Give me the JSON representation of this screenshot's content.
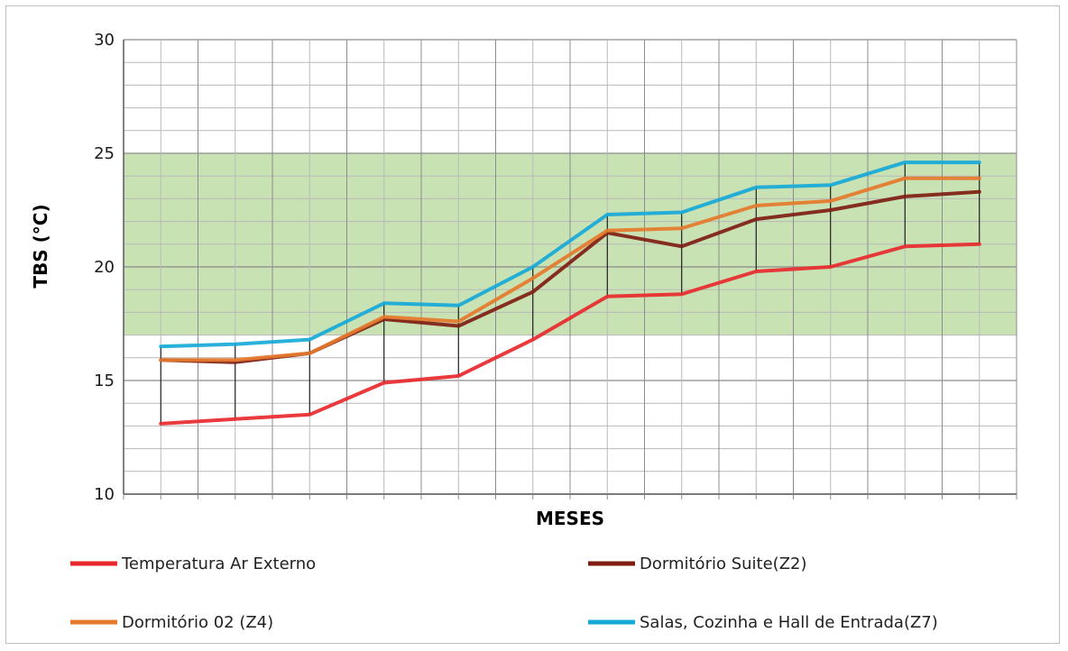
{
  "chart_data": {
    "type": "line",
    "title": "",
    "xlabel": "MESES",
    "ylabel": "TBS (°C)",
    "ylim": [
      10,
      30
    ],
    "yticks": [
      10,
      15,
      20,
      25,
      30
    ],
    "x": [
      1,
      2,
      3,
      4,
      5,
      6,
      7,
      8,
      9,
      10,
      11,
      12
    ],
    "grid": true,
    "comfort_band": {
      "from": 17,
      "to": 25,
      "color": "#c9e2b4"
    },
    "series": [
      {
        "name": "Temperatura Ar Externo",
        "color": "#e8292c",
        "values": [
          13.1,
          13.3,
          13.5,
          14.9,
          15.2,
          16.8,
          18.7,
          18.8,
          19.8,
          20.0,
          20.9,
          21.0
        ]
      },
      {
        "name": "Dormitório Suite(Z2)",
        "color": "#7f1d12",
        "values": [
          15.9,
          15.8,
          16.2,
          17.7,
          17.4,
          18.9,
          21.5,
          20.9,
          22.1,
          22.5,
          23.1,
          23.3
        ]
      },
      {
        "name": "Dormitório 02 (Z4)",
        "color": "#e57a2c",
        "values": [
          15.9,
          15.9,
          16.2,
          17.8,
          17.6,
          19.5,
          21.6,
          21.7,
          22.7,
          22.9,
          23.9,
          23.9
        ]
      },
      {
        "name": "Salas, Cozinha e Hall de Entrada(Z7)",
        "color": "#17a9d8",
        "values": [
          16.5,
          16.6,
          16.8,
          18.4,
          18.3,
          20.0,
          22.3,
          22.4,
          23.5,
          23.6,
          24.6,
          24.6
        ]
      }
    ],
    "legend_position": "bottom"
  }
}
